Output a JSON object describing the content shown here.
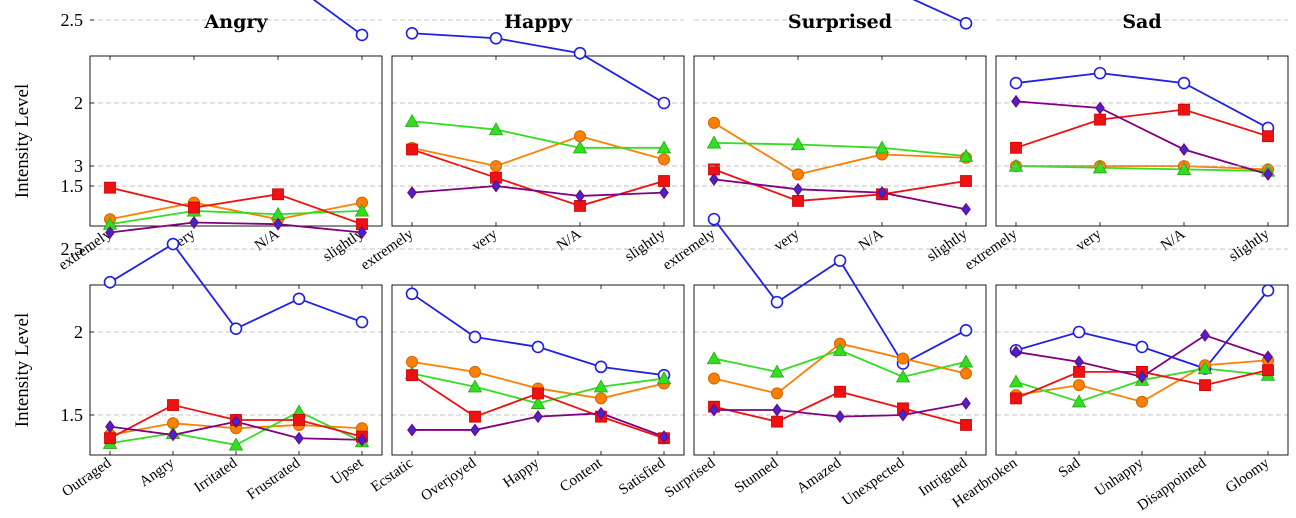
{
  "chart_data": {
    "type": "line",
    "ylabel": "Intensity Level",
    "ylim": [
      1.15,
      3.18
    ],
    "yticks": [
      1.5,
      2,
      2.5,
      3
    ],
    "ytick_labels": [
      "1.5",
      "2",
      "2.5",
      "3"
    ],
    "grid": "horizontal dashed",
    "series_colors": [
      "#1f1fe6",
      "#ff8000",
      "#33dd22",
      "#ee1111",
      "#800080"
    ],
    "series_markers": [
      "circle-open",
      "circle-filled",
      "triangle",
      "square",
      "diamond"
    ],
    "columns": [
      "Angry",
      "Happy",
      "Surprised",
      "Sad"
    ],
    "panels": [
      {
        "title": "Angry",
        "categories": [
          "extremely",
          "very",
          "N/A",
          "slightly"
        ],
        "series": [
          {
            "values": [
              3.07,
              2.86,
              2.78,
              2.41
            ]
          },
          {
            "values": [
              1.3,
              1.4,
              1.3,
              1.4
            ]
          },
          {
            "values": [
              1.27,
              1.35,
              1.33,
              1.35
            ]
          },
          {
            "values": [
              1.49,
              1.37,
              1.45,
              1.27
            ]
          },
          {
            "values": [
              1.22,
              1.28,
              1.27,
              1.22
            ]
          }
        ]
      },
      {
        "title": "Happy",
        "categories": [
          "extremely",
          "very",
          "N/A",
          "slightly"
        ],
        "series": [
          {
            "values": [
              2.42,
              2.39,
              2.3,
              2.0
            ]
          },
          {
            "values": [
              1.73,
              1.62,
              1.8,
              1.66
            ]
          },
          {
            "values": [
              1.89,
              1.84,
              1.73,
              1.73
            ]
          },
          {
            "values": [
              1.72,
              1.55,
              1.38,
              1.53
            ]
          },
          {
            "values": [
              1.46,
              1.5,
              1.44,
              1.46
            ]
          }
        ]
      },
      {
        "title": "Surprised",
        "categories": [
          "extremely",
          "very",
          "N/A",
          "slightly"
        ],
        "series": [
          {
            "values": [
              2.88,
              2.8,
              2.71,
              2.48
            ]
          },
          {
            "values": [
              1.88,
              1.57,
              1.69,
              1.67
            ]
          },
          {
            "values": [
              1.76,
              1.75,
              1.73,
              1.68
            ]
          },
          {
            "values": [
              1.6,
              1.41,
              1.45,
              1.53
            ]
          },
          {
            "values": [
              1.54,
              1.48,
              1.46,
              1.36
            ]
          }
        ]
      },
      {
        "title": "Sad",
        "categories": [
          "extremely",
          "very",
          "N/A",
          "slightly"
        ],
        "series": [
          {
            "values": [
              2.12,
              2.18,
              2.12,
              1.85
            ]
          },
          {
            "values": [
              1.62,
              1.62,
              1.62,
              1.6
            ]
          },
          {
            "values": [
              1.62,
              1.61,
              1.6,
              1.59
            ]
          },
          {
            "values": [
              1.73,
              1.9,
              1.96,
              1.8
            ]
          },
          {
            "values": [
              2.01,
              1.97,
              1.72,
              1.57
            ]
          }
        ]
      },
      {
        "title": "",
        "categories": [
          "Outraged",
          "Angry",
          "Irritated",
          "Frustrated",
          "Upset"
        ],
        "series": [
          {
            "values": [
              2.3,
              2.53,
              2.02,
              2.2,
              2.06
            ]
          },
          {
            "values": [
              1.38,
              1.45,
              1.42,
              1.44,
              1.42
            ]
          },
          {
            "values": [
              1.33,
              1.39,
              1.32,
              1.52,
              1.34
            ]
          },
          {
            "values": [
              1.36,
              1.56,
              1.47,
              1.47,
              1.37
            ]
          },
          {
            "values": [
              1.43,
              1.38,
              1.46,
              1.36,
              1.35
            ]
          }
        ]
      },
      {
        "title": "",
        "categories": [
          "Ecstatic",
          "Overjoyed",
          "Happy",
          "Content",
          "Satisfied"
        ],
        "series": [
          {
            "values": [
              2.23,
              1.97,
              1.91,
              1.79,
              1.74
            ]
          },
          {
            "values": [
              1.82,
              1.76,
              1.66,
              1.6,
              1.69
            ]
          },
          {
            "values": [
              1.75,
              1.67,
              1.57,
              1.67,
              1.72
            ]
          },
          {
            "values": [
              1.74,
              1.49,
              1.63,
              1.49,
              1.36
            ]
          },
          {
            "values": [
              1.41,
              1.41,
              1.49,
              1.51,
              1.37
            ]
          }
        ]
      },
      {
        "title": "",
        "categories": [
          "Surprised",
          "Stunned",
          "Amazed",
          "Unexpected",
          "Intrigued"
        ],
        "series": [
          {
            "values": [
              2.68,
              2.18,
              2.43,
              1.81,
              2.01
            ]
          },
          {
            "values": [
              1.72,
              1.63,
              1.93,
              1.84,
              1.75
            ]
          },
          {
            "values": [
              1.84,
              1.76,
              1.89,
              1.73,
              1.82
            ]
          },
          {
            "values": [
              1.55,
              1.46,
              1.64,
              1.54,
              1.44
            ]
          },
          {
            "values": [
              1.53,
              1.53,
              1.49,
              1.5,
              1.57
            ]
          }
        ]
      },
      {
        "title": "",
        "categories": [
          "Heartbroken",
          "Sad",
          "Unhappy",
          "Disappointed",
          "Gloomy"
        ],
        "series": [
          {
            "values": [
              1.89,
              2.0,
              1.91,
              1.78,
              2.25
            ]
          },
          {
            "values": [
              1.62,
              1.68,
              1.58,
              1.8,
              1.83
            ]
          },
          {
            "values": [
              1.7,
              1.58,
              1.71,
              1.78,
              1.74
            ]
          },
          {
            "values": [
              1.6,
              1.76,
              1.76,
              1.68,
              1.77
            ]
          },
          {
            "values": [
              1.88,
              1.82,
              1.73,
              1.98,
              1.85
            ]
          }
        ]
      }
    ]
  }
}
